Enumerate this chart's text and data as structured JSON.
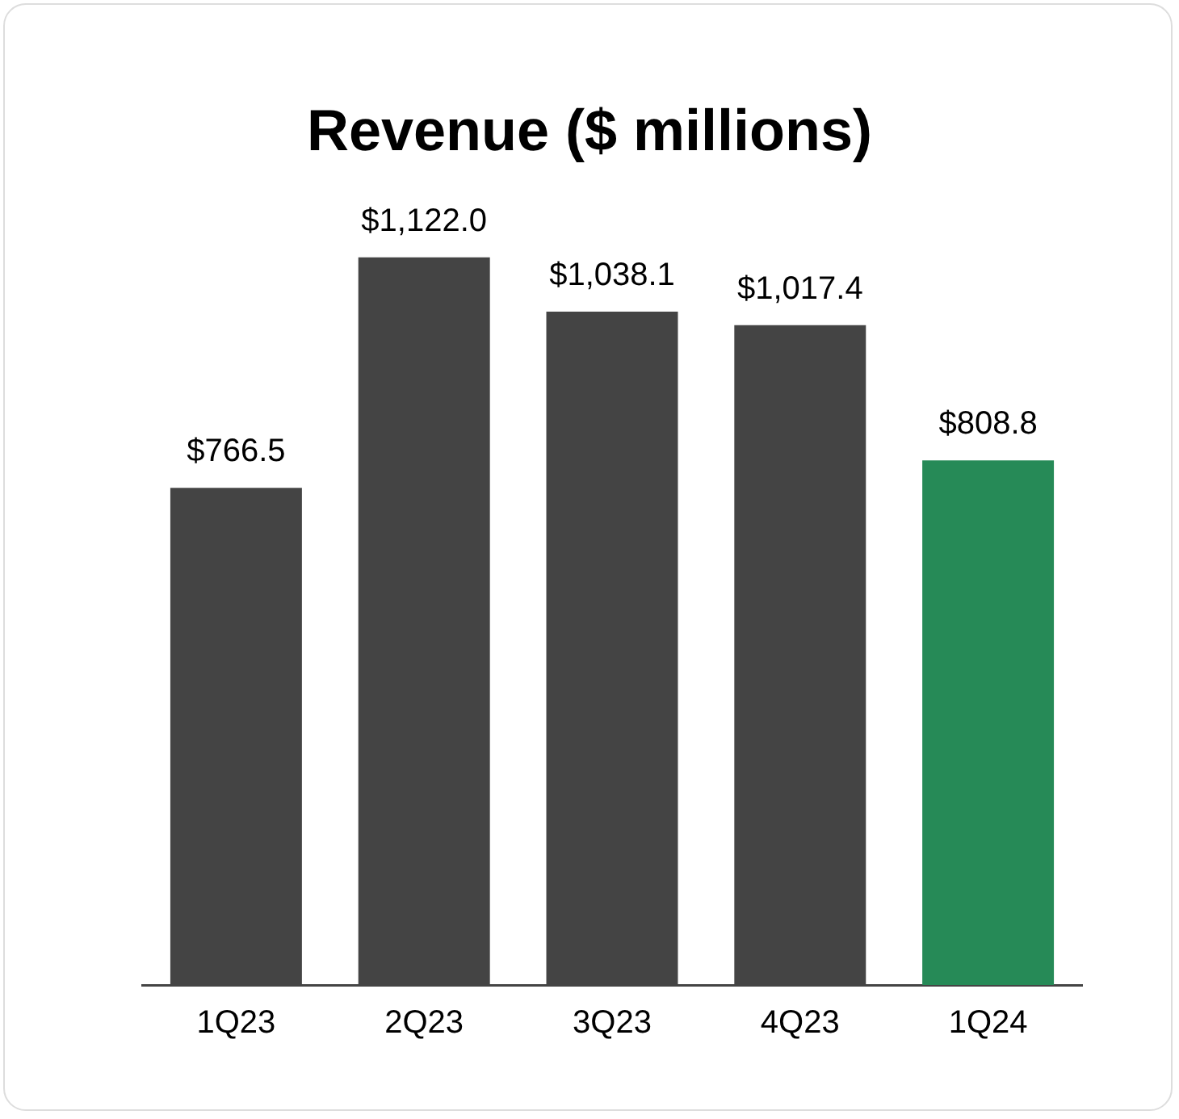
{
  "chart_data": {
    "type": "bar",
    "title": "Revenue ($ millions)",
    "categories": [
      "1Q23",
      "2Q23",
      "3Q23",
      "4Q23",
      "1Q24"
    ],
    "values": [
      766.5,
      1122.0,
      1038.1,
      1017.4,
      808.8
    ],
    "colors": [
      "#444444",
      "#444444",
      "#444444",
      "#444444",
      "#268a57"
    ],
    "value_labels": [
      "$766.5",
      "$1,122.0",
      "$1,038.1",
      "$1,017.4",
      "$808.8"
    ],
    "relative": false,
    "grid": false,
    "legend": false
  }
}
